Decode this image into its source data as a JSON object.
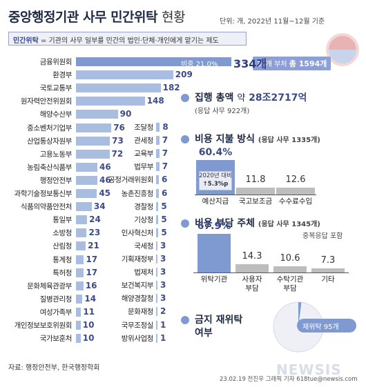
{
  "header": {
    "title_main": "중앙행정기관 사무 민간위탁",
    "title_tail": "현황",
    "unit_note": "단위: 개, 2022년 11월~12월 기준",
    "definition_term": "민간위탁",
    "definition_text": " = 기관의 사무 일부를 민간의 법인·단체·개인에게 맡기는 제도"
  },
  "total_badge": {
    "prefix": "39개 부처",
    "total_label": "총 1594개"
  },
  "bars_share_label": "비중 21.0%",
  "chart_data": [
    {
      "type": "bar",
      "orientation": "horizontal",
      "title": "",
      "categories": [
        "금융위원회",
        "환경부",
        "국토교통부",
        "원자력안전위원회",
        "해양수산부",
        "중소벤처기업부",
        "산업통상자원부",
        "고용노동부",
        "농림축산식품부",
        "행정안전부",
        "과학기술정보통신부",
        "식품의약품안전처",
        "통일부",
        "소방청",
        "산림청",
        "통계청",
        "특허청",
        "문화체육관광부",
        "질병관리청",
        "여성가족부",
        "개인정보보호위원회",
        "국가보훈처"
      ],
      "values": [
        334,
        209,
        182,
        148,
        90,
        76,
        73,
        72,
        46,
        46,
        45,
        34,
        24,
        23,
        21,
        17,
        17,
        16,
        14,
        11,
        10,
        10
      ],
      "value_labels": [
        "334개",
        "209",
        "182",
        "148",
        "90",
        "76",
        "73",
        "72",
        "46",
        "46",
        "45",
        "34",
        "24",
        "23",
        "21",
        "17",
        "17",
        "16",
        "14",
        "11",
        "10",
        "10"
      ],
      "xlim": [
        0,
        334
      ]
    },
    {
      "type": "bar",
      "orientation": "horizontal",
      "title": "",
      "categories": [
        "조달청",
        "관세청",
        "교육부",
        "법무부",
        "공정거래위원회",
        "농촌진흥청",
        "경찰청",
        "기상청",
        "인사혁신처",
        "국세청",
        "기획재정부",
        "법제처",
        "보건복지부",
        "해양경찰청",
        "문화재청",
        "국무조정실",
        "방위사업청"
      ],
      "values": [
        8,
        7,
        7,
        7,
        6,
        6,
        5,
        5,
        5,
        3,
        3,
        3,
        3,
        3,
        2,
        1,
        1
      ],
      "value_labels": [
        "8",
        "7",
        "7",
        "7",
        "6",
        "6",
        "5",
        "5",
        "5",
        "3",
        "3",
        "3",
        "3",
        "3",
        "2",
        "1",
        "1"
      ],
      "xlim": [
        0,
        334
      ]
    },
    {
      "type": "bar",
      "title": "비용 지불 방식",
      "subtitle": "(응답 사무 1335개)",
      "categories": [
        "예산지급",
        "국고보조금",
        "수수료수입"
      ],
      "values": [
        60.4,
        11.8,
        12.6
      ],
      "value_labels": [
        "60.4%",
        "11.8",
        "12.6"
      ],
      "annotation": {
        "line1": "2020년 대비",
        "line2": "↑5.3%p"
      },
      "ylim": [
        0,
        60.4
      ]
    },
    {
      "type": "bar",
      "title": "비용 부담 주체",
      "subtitle": "(응답 사무 1345개)",
      "note": "중복응답 포함",
      "categories": [
        "위탁기관",
        "사용자 부담",
        "수탁기관 부담",
        "기타"
      ],
      "category_lines": [
        [
          "위탁기관"
        ],
        [
          "사용자",
          "부담"
        ],
        [
          "수탁기관",
          "부담"
        ],
        [
          "기타"
        ]
      ],
      "values": [
        67.9,
        14.3,
        10.6,
        7.3
      ],
      "value_labels": [
        "67.9%",
        "14.3",
        "10.6",
        "7.3"
      ],
      "ylim": [
        0,
        67.9
      ]
    },
    {
      "type": "pie",
      "title": "금지 재위탁 여부",
      "title_lines": [
        "금지 재위탁",
        "여부"
      ],
      "slices": [
        {
          "name": "재위탁",
          "value": 95,
          "label": "재위탁 95개"
        }
      ]
    }
  ],
  "exec_amount": {
    "label": "집행 총액",
    "approx": "약",
    "value": "28조2717억",
    "sub": "(응답 사무 922개)"
  },
  "footer": {
    "source": "자료: 행정안전부, 한국행정학회",
    "credit": "23.02.19 전진우 그래픽 기자 618tue@newsis.com",
    "watermark": "NEWSIS"
  },
  "colors": {
    "primary": "#7f9ad1",
    "bar": "#a9bde0",
    "gray": "#bdbdbd",
    "accent": "#3b4a8a"
  }
}
